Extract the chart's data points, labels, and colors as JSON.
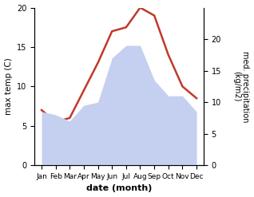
{
  "months": [
    "Jan",
    "Feb",
    "Mar",
    "Apr",
    "May",
    "Jun",
    "Jul",
    "Aug",
    "Sep",
    "Oct",
    "Nov",
    "Dec"
  ],
  "temp": [
    7,
    5.5,
    6,
    9.5,
    13,
    17,
    17.5,
    20,
    19,
    14,
    10,
    8.5
  ],
  "precip": [
    8.5,
    8,
    7,
    9.5,
    10,
    17,
    19,
    19,
    13.5,
    11,
    11,
    8.5
  ],
  "temp_color": "#c0392b",
  "precip_fill_color": "#c5d0f0",
  "ylabel_left": "max temp (C)",
  "ylabel_right": "med. precipitation\n(kg/m2)",
  "xlabel": "date (month)",
  "ylim_left": [
    0,
    20
  ],
  "ylim_right": [
    0,
    25
  ],
  "left_ticks": [
    0,
    5,
    10,
    15,
    20
  ],
  "right_ticks": [
    0,
    5,
    10,
    15,
    20
  ],
  "temp_linewidth": 1.8,
  "bg_color": "#ffffff"
}
